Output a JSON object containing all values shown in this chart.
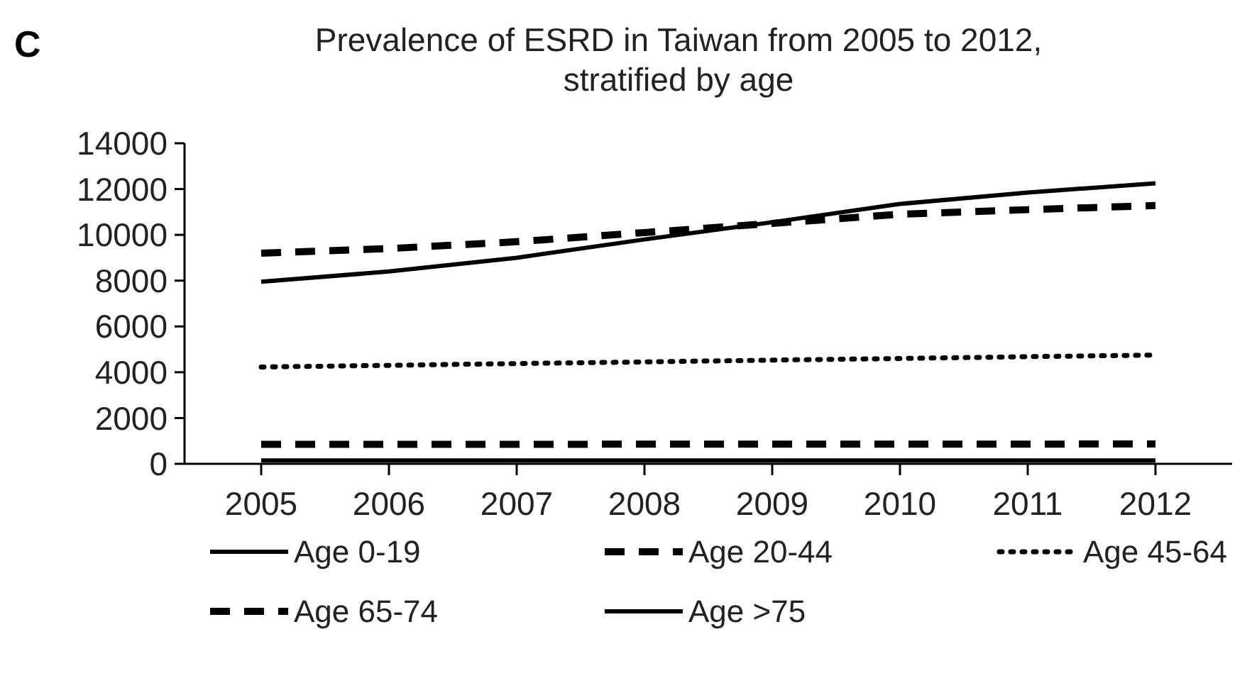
{
  "chart_data": {
    "type": "line",
    "title": "Prevalence of ESRD in Taiwan from 2005 to 2012, stratified by age",
    "annotations": [
      "C"
    ],
    "categories": [
      "2005",
      "2006",
      "2007",
      "2008",
      "2009",
      "2010",
      "2011",
      "2012"
    ],
    "series": [
      {
        "name": "Age 0-19",
        "color": "#000000",
        "line_style": "solid",
        "values": [
          150,
          150,
          150,
          150,
          150,
          150,
          150,
          150
        ]
      },
      {
        "name": "Age 20-44",
        "color": "#000000",
        "line_style": "dashed",
        "values": [
          850,
          850,
          850,
          860,
          860,
          860,
          860,
          870
        ]
      },
      {
        "name": "Age 45-64",
        "color": "#000000",
        "line_style": "dotted",
        "values": [
          4230,
          4300,
          4380,
          4450,
          4530,
          4600,
          4680,
          4750
        ]
      },
      {
        "name": "Age 65-74",
        "color": "#000000",
        "line_style": "dashed",
        "values": [
          9200,
          9400,
          9700,
          10100,
          10500,
          10900,
          11100,
          11280
        ]
      },
      {
        "name": "Age >75",
        "color": "#000000",
        "line_style": "solid",
        "values": [
          7950,
          8400,
          9000,
          9800,
          10550,
          11350,
          11850,
          12250
        ]
      }
    ],
    "ylim": [
      0,
      14000
    ],
    "yticks": [
      0,
      2000,
      4000,
      6000,
      8000,
      10000,
      12000,
      14000
    ],
    "grid": false,
    "legend": "bottom",
    "marker": "none"
  }
}
